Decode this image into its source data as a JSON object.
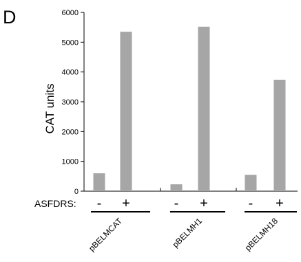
{
  "panel_label": "D",
  "row_label": "ASFDRS:",
  "chart_data": {
    "type": "bar",
    "title": "",
    "xlabel": "",
    "ylabel": "CAT units",
    "ylim": [
      0,
      6000
    ],
    "yticks": [
      0,
      1000,
      2000,
      3000,
      4000,
      5000,
      6000
    ],
    "grid": false,
    "groups": [
      {
        "name": "pBELMCAT",
        "bars": [
          {
            "condition": "-",
            "value": 600
          },
          {
            "condition": "+",
            "value": 5350
          }
        ]
      },
      {
        "name": "pBELMH1",
        "bars": [
          {
            "condition": "-",
            "value": 230
          },
          {
            "condition": "+",
            "value": 5520
          }
        ]
      },
      {
        "name": "pBELMH18",
        "bars": [
          {
            "condition": "-",
            "value": 550
          },
          {
            "condition": "+",
            "value": 3740
          }
        ]
      }
    ],
    "bar_color": "#a6a6a6"
  }
}
